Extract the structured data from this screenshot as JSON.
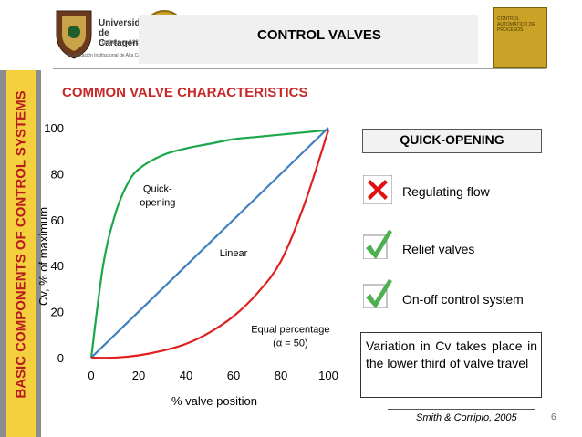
{
  "sidebar": {
    "title": "BASIC COMPONENTS OF CONTROL SYSTEMS"
  },
  "header": {
    "title": "CONTROL VALVES",
    "university": "Universidad de Cartagena",
    "founded": "Fundada en 1827",
    "accreditation": "Acreditación Institucional de Alta Calidad - Resolución 2583 del 26 de febrero de 2014 - Ministerio de Educación Nacional",
    "book_title": "CONTROL AUTOMÁTICO DE PROCESOS"
  },
  "section_title": "COMMON VALVE CHARACTERISTICS",
  "quick_opening": {
    "title": "QUICK-OPENING",
    "items": [
      {
        "label": "Regulating flow",
        "icon": "cross-icon",
        "color": "#e01010"
      },
      {
        "label": "Relief valves",
        "icon": "check-icon",
        "color": "#4caf50"
      },
      {
        "label": "On-off control system",
        "icon": "check-icon",
        "color": "#4caf50"
      }
    ]
  },
  "note": "Variation in Cv takes place in the lower third of valve travel",
  "citation": "Smith & Corripio, 2005",
  "page_number": "6",
  "chart_data": {
    "type": "line",
    "title": "",
    "xlabel": "% valve position",
    "ylabel": "Cv, % of maximum",
    "xlim": [
      0,
      100
    ],
    "ylim": [
      0,
      100
    ],
    "xticks": [
      0,
      20,
      40,
      60,
      80,
      100
    ],
    "yticks": [
      0,
      20,
      40,
      60,
      80,
      100
    ],
    "grid": false,
    "series": [
      {
        "name": "Quick-opening",
        "color": "#1aa84a",
        "x": [
          0,
          5,
          10,
          15,
          20,
          30,
          40,
          50,
          60,
          70,
          80,
          90,
          100
        ],
        "y": [
          0,
          40,
          62,
          75,
          82,
          88,
          91,
          93,
          95,
          96,
          97,
          98,
          99
        ]
      },
      {
        "name": "Linear",
        "color": "#3f7fbf",
        "x": [
          0,
          100
        ],
        "y": [
          0,
          100
        ]
      },
      {
        "name": "Equal percentage",
        "color": "#e02020",
        "x": [
          0,
          10,
          20,
          30,
          40,
          50,
          60,
          70,
          80,
          90,
          100
        ],
        "y": [
          0,
          0,
          1,
          3,
          6,
          11,
          18,
          28,
          42,
          67,
          99
        ]
      }
    ],
    "annotations": [
      {
        "text": "Quick-",
        "x": 28,
        "y": 72
      },
      {
        "text": "opening",
        "x": 28,
        "y": 66
      },
      {
        "text": "Linear",
        "x": 60,
        "y": 44
      },
      {
        "text": "Equal percentage",
        "x": 84,
        "y": 11
      },
      {
        "text": "(α = 50)",
        "x": 84,
        "y": 5
      }
    ]
  }
}
